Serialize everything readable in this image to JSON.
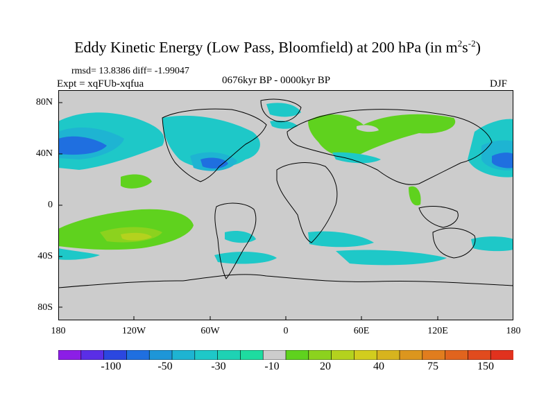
{
  "title": {
    "main": "Eddy Kinetic Energy (Low Pass, Bloomfield) at 200 hPa (in m",
    "sup1": "2",
    "mid": "s",
    "sup2": "-2",
    "end": ")"
  },
  "stats": "rmsd= 13.8386 diff= -1.99047",
  "expt": "Expt = xqFUb-xqfua",
  "period": "0676kyr BP - 0000kyr BP",
  "season": "DJF",
  "y_ticks": [
    "80N",
    "40N",
    "0",
    "40S",
    "80S"
  ],
  "x_ticks": [
    "180",
    "120W",
    "60W",
    "0",
    "60E",
    "120E",
    "180"
  ],
  "colorbar": {
    "colors": [
      "#8c1ee6",
      "#5a2ee6",
      "#2b47e0",
      "#1f6fe0",
      "#1e96d8",
      "#1eb4d2",
      "#1ec8c8",
      "#1ed2b4",
      "#1edca0",
      "#cccccc",
      "#5fd21e",
      "#8cd21e",
      "#b4d21e",
      "#d2cd1e",
      "#d7b41e",
      "#dc961e",
      "#e17d1e",
      "#e1641e",
      "#e14b1e",
      "#e1321e"
    ],
    "labels": [
      "-100",
      "-50",
      "-30",
      "-10",
      "20",
      "40",
      "75",
      "150"
    ]
  },
  "colors": {
    "background": "#cccccc",
    "coast": "#000000"
  }
}
